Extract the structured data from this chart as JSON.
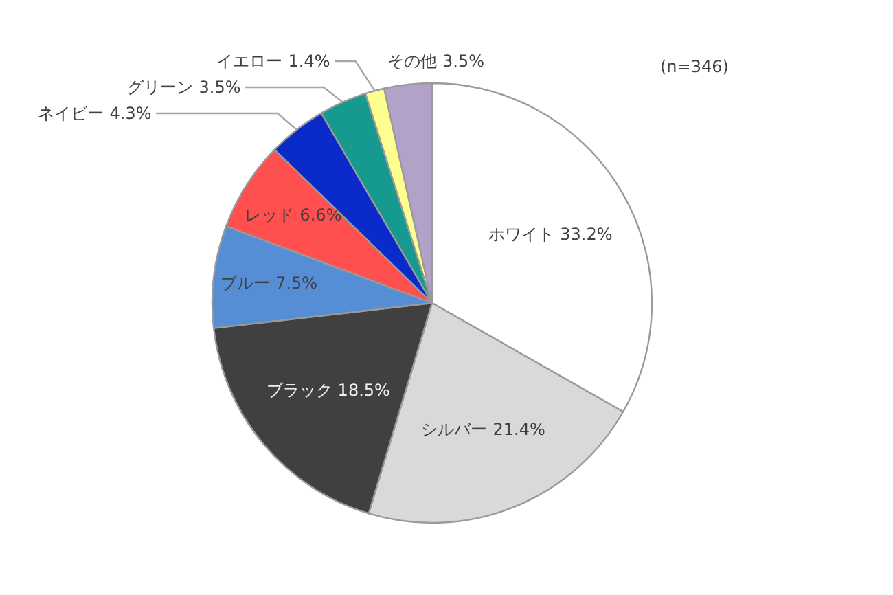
{
  "chart_data": {
    "type": "pie",
    "categories": [
      "ホワイト",
      "シルバー",
      "ブラック",
      "ブルー",
      "レッド",
      "ネイビー",
      "グリーン",
      "イエロー",
      "その他"
    ],
    "values": [
      33.2,
      21.4,
      18.5,
      7.5,
      6.6,
      4.3,
      3.5,
      1.4,
      3.5
    ],
    "value_labels": [
      "33.2%",
      "21.4%",
      "18.5%",
      "7.5%",
      "6.6%",
      "4.3%",
      "3.5%",
      "1.4%",
      "3.5%"
    ],
    "colors": [
      "#ffffff",
      "#d9d9d9",
      "#404040",
      "#558ed5",
      "#ff4f4f",
      "#0a2ac9",
      "#16998f",
      "#ffff8f",
      "#b3a2c7"
    ],
    "annotations": [
      "(n=346)"
    ]
  }
}
